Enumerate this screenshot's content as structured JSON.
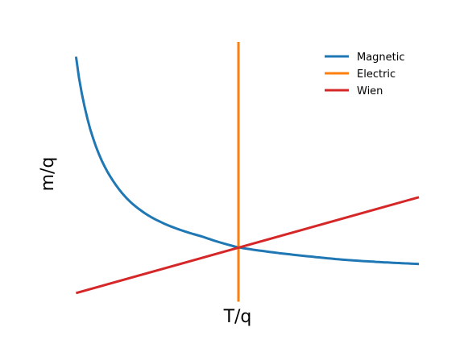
{
  "chart_data": {
    "type": "line",
    "xlabel": "T/q",
    "ylabel": "m/q",
    "grid": false,
    "axes_visible": false,
    "xlim": [
      0,
      2.0
    ],
    "ylim": [
      0,
      4.6
    ],
    "legend": {
      "placement": "top-right",
      "entries": [
        "Magnetic",
        "Electric",
        "Wien"
      ]
    },
    "series": [
      {
        "name": "Magnetic",
        "color": "#1f77b4",
        "kind": "curve",
        "x": [
          0.1,
          0.15,
          0.2,
          0.25,
          0.3,
          0.4,
          0.5,
          0.6,
          0.8,
          1.0,
          1.2,
          1.4,
          1.6,
          1.8,
          2.0
        ],
        "y": [
          4.34,
          3.43,
          2.86,
          2.47,
          2.19,
          1.8,
          1.56,
          1.4,
          1.19,
          1.0,
          0.91,
          0.84,
          0.78,
          0.74,
          0.71
        ]
      },
      {
        "name": "Electric",
        "color": "#ff7f0e",
        "kind": "vertical",
        "x": [
          1.0,
          1.0
        ],
        "y": [
          0.05,
          4.6
        ]
      },
      {
        "name": "Wien",
        "color": "#d62728",
        "kind": "line",
        "x": [
          0.1,
          2.0
        ],
        "y": [
          0.2,
          1.88
        ]
      }
    ]
  }
}
